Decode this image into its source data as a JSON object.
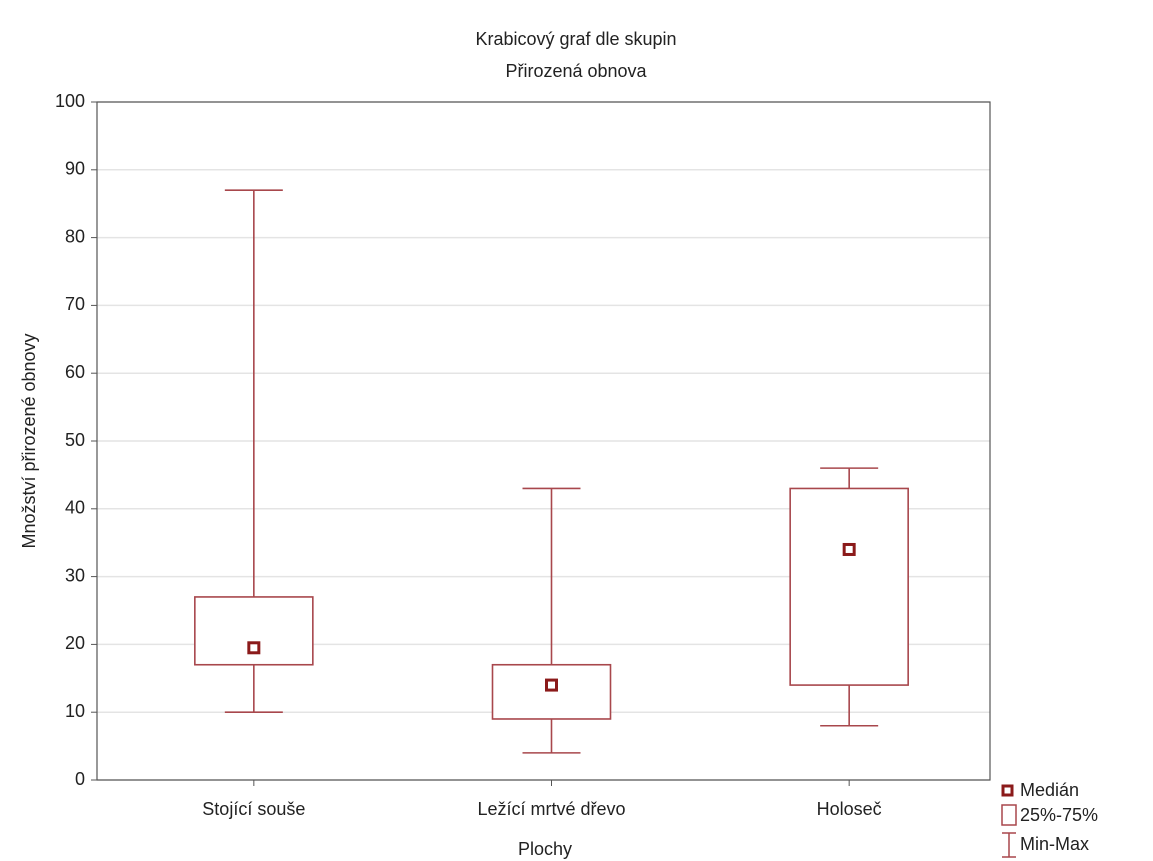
{
  "chart_data": {
    "type": "box",
    "title": "Krabicový graf dle skupin",
    "subtitle": "Přirozená obnova",
    "xlabel": "Plochy",
    "ylabel": "Množství přirozené obnovy",
    "categories": [
      "Stojící souše",
      "Ležící mrtvé dřevo",
      "Holoseč"
    ],
    "min": [
      10,
      4,
      8
    ],
    "q1": [
      17,
      9,
      14
    ],
    "median": [
      19.5,
      14,
      34
    ],
    "q3": [
      27,
      17,
      43
    ],
    "max": [
      87,
      43,
      46
    ],
    "color": "#a8474c",
    "median_color": "#8b1a1a",
    "legend": [
      "Medián",
      "25%-75%",
      "Min-Max"
    ],
    "ylim": [
      0,
      100
    ],
    "yticks": [
      0,
      10,
      20,
      30,
      40,
      50,
      60,
      70,
      80,
      90,
      100
    ],
    "grid": true
  }
}
